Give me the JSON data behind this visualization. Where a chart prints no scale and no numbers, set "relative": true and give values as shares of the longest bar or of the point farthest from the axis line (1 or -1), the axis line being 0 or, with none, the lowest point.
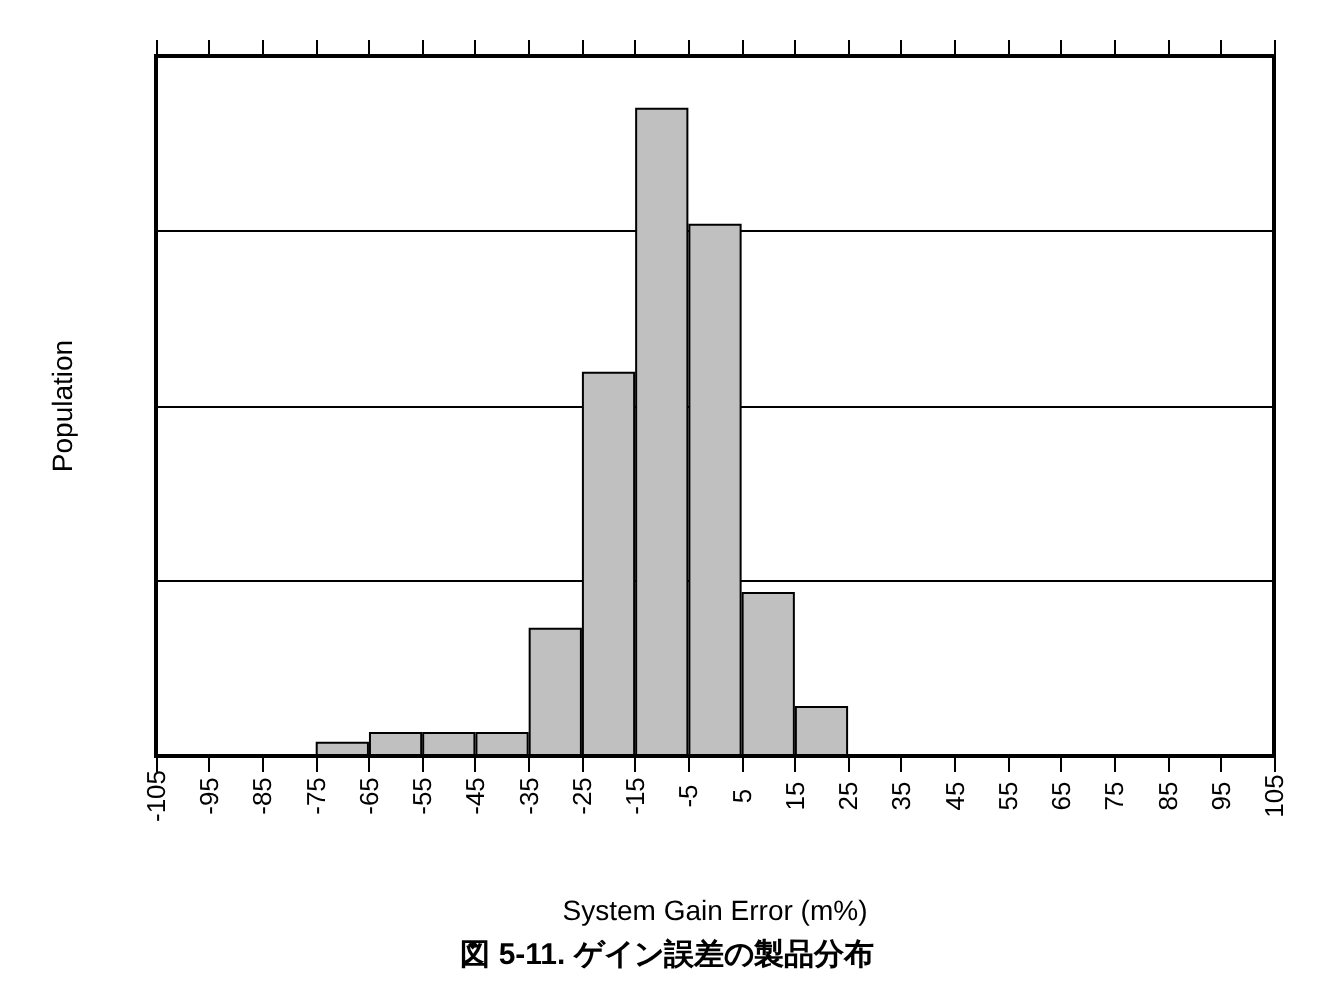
{
  "chart_data": {
    "type": "bar",
    "title": "図 5-11. ゲイン誤差の製品分布",
    "xlabel": "System Gain Error (m%)",
    "ylabel": "Population",
    "relative": true,
    "x": [
      -70,
      -60,
      -50,
      -40,
      -30,
      -20,
      -10,
      0,
      10,
      20
    ],
    "values": [
      0.022,
      0.037,
      0.037,
      0.037,
      0.198,
      0.593,
      1,
      0.821,
      0.253,
      0.077
    ],
    "color": "#c0c0c0",
    "xlim": [
      -105,
      105
    ],
    "xticks": [
      -105,
      -95,
      -85,
      -75,
      -65,
      -55,
      -45,
      -35,
      -25,
      -15,
      -5,
      5,
      15,
      25,
      35,
      45,
      55,
      65,
      75,
      85,
      95,
      105
    ],
    "grid": "y"
  }
}
